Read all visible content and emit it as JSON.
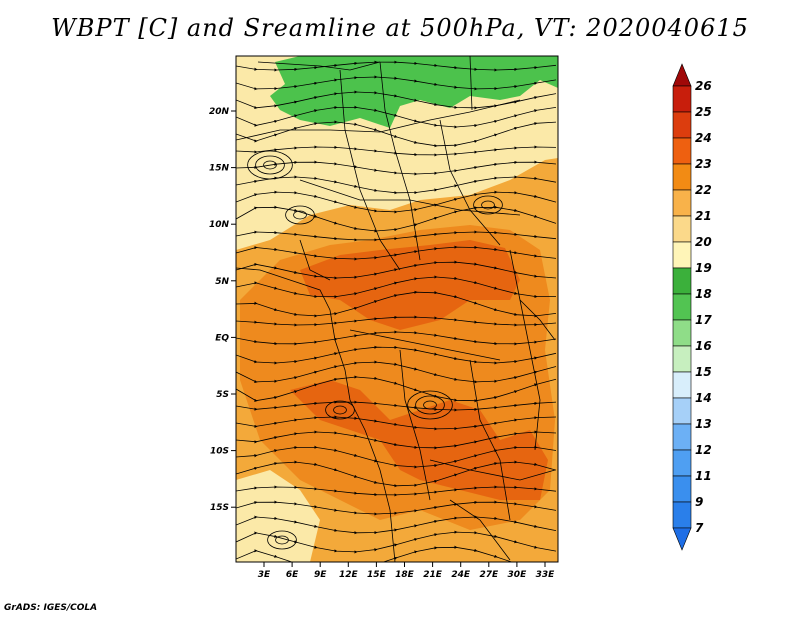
{
  "title": "WBPT [C] and Sreamline at 500hPa, VT: 2020040615",
  "credit": "GrADS: IGES/COLA",
  "map": {
    "lat_labels": [
      "20N",
      "15N",
      "10N",
      "5N",
      "EQ",
      "5S",
      "10S",
      "15S"
    ],
    "lon_labels": [
      "3E",
      "6E",
      "9E",
      "12E",
      "15E",
      "18E",
      "21E",
      "24E",
      "27E",
      "30E",
      "33E"
    ]
  },
  "colorbar": {
    "levels": [
      "7",
      "9",
      "11",
      "12",
      "13",
      "14",
      "15",
      "16",
      "17",
      "18",
      "19",
      "20",
      "21",
      "22",
      "23",
      "24",
      "25",
      "26"
    ],
    "colors": [
      "#1e6ee6",
      "#2a7fea",
      "#3a8fee",
      "#4f9ff2",
      "#6cb0f5",
      "#a6d0f8",
      "#d8eefb",
      "#c7efbf",
      "#8fdd88",
      "#52c452",
      "#3bb03b",
      "#fff5b8",
      "#fbd98a",
      "#f8b24a",
      "#f28b14",
      "#ee6010",
      "#dc3d0e",
      "#c81e0c",
      "#a00808"
    ]
  },
  "colors": {
    "land": "#fbe9a8",
    "green": "#4cc24c",
    "orange_light": "#f3a93a",
    "orange_mid": "#ee8a1e",
    "orange_dark": "#e66510"
  }
}
